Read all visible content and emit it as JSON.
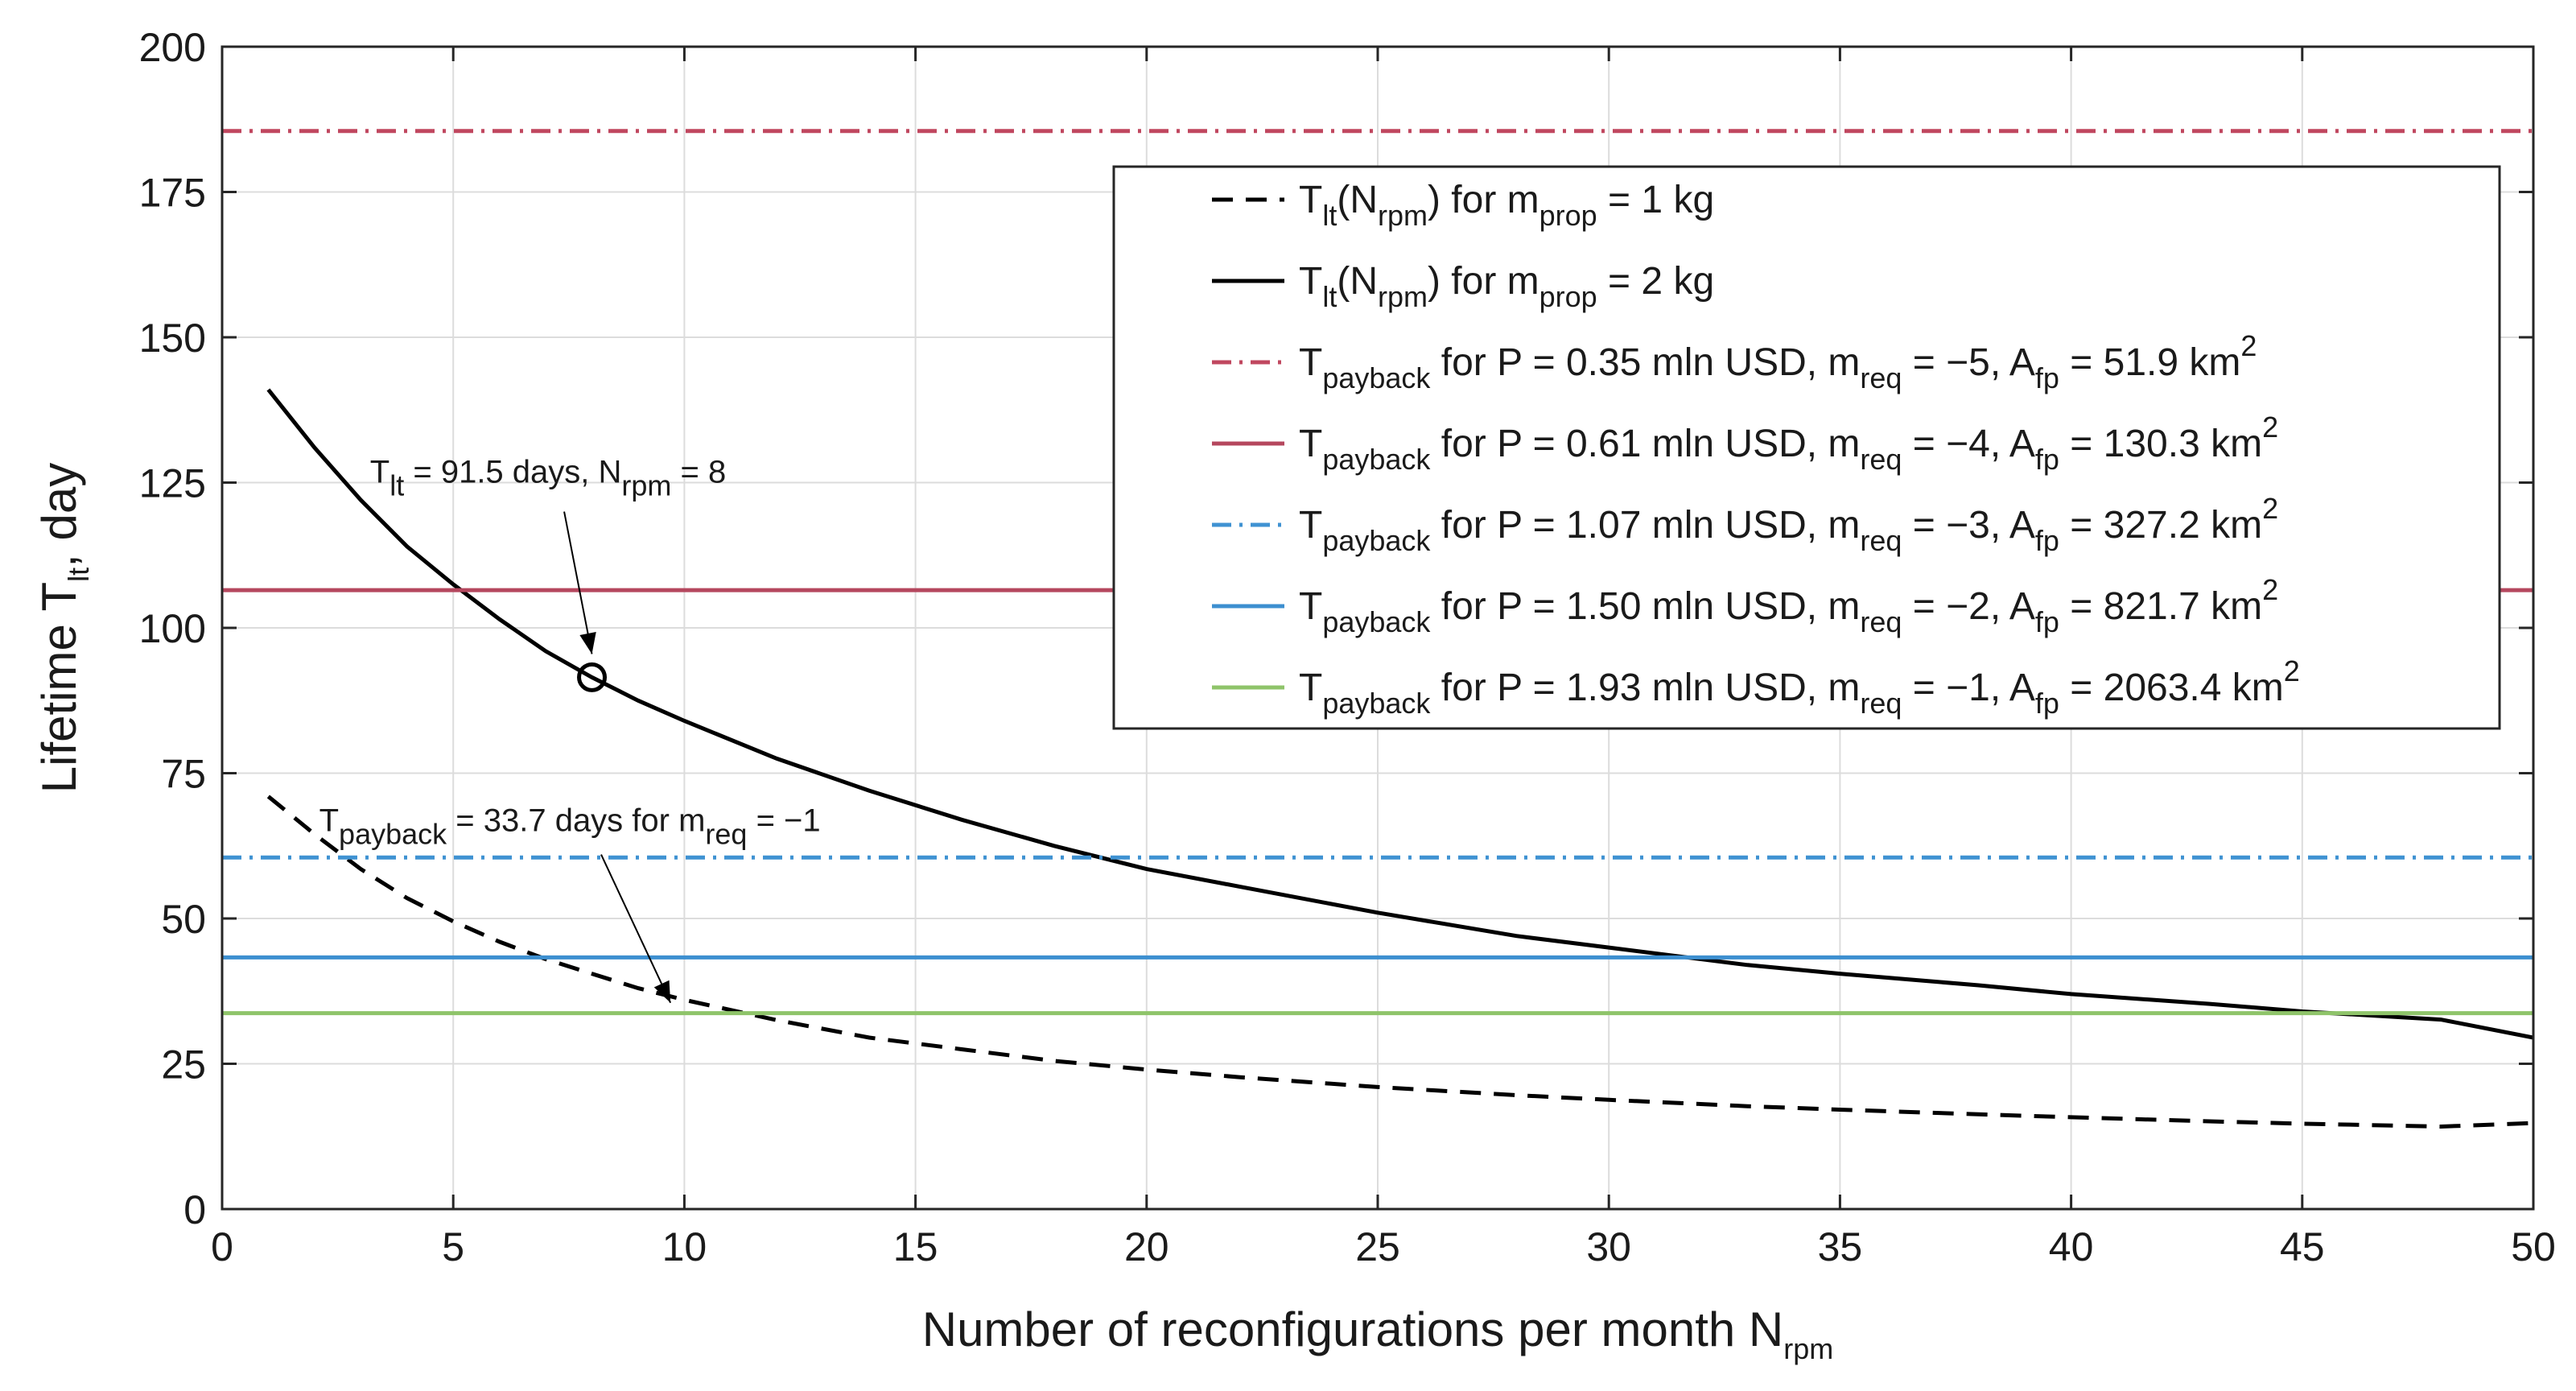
{
  "chart_data": {
    "type": "line",
    "xlim": [
      0,
      50
    ],
    "ylim": [
      0,
      200
    ],
    "x_ticks": [
      0,
      5,
      10,
      15,
      20,
      25,
      30,
      35,
      40,
      45,
      50
    ],
    "y_ticks": [
      0,
      25,
      50,
      75,
      100,
      125,
      150,
      175,
      200
    ],
    "grid": true,
    "legend_placement": "top-right",
    "xlabel": {
      "main": "Number of reconfigurations per month N",
      "sub": "rpm"
    },
    "ylabel": {
      "main": "Lifetime T",
      "sub": "lt",
      "suffix": ", day"
    },
    "series": [
      {
        "style": "dashed",
        "color": "#000000",
        "legend": [
          {
            "t": "T"
          },
          {
            "t": "lt",
            "s": "sub"
          },
          {
            "t": "(N"
          },
          {
            "t": "rpm",
            "s": "sub"
          },
          {
            "t": ") for m"
          },
          {
            "t": "prop",
            "s": "sub"
          },
          {
            "t": " = 1 kg"
          }
        ],
        "x": [
          1,
          2,
          3,
          4,
          5,
          6,
          7,
          8,
          9,
          10,
          12,
          14,
          16,
          18,
          20,
          22,
          25,
          28,
          30,
          33,
          35,
          38,
          40,
          43,
          45,
          48,
          50
        ],
        "y": [
          71,
          64.5,
          58.5,
          53.5,
          49.5,
          46,
          43,
          40.5,
          38,
          36,
          32.5,
          29.5,
          27.5,
          25.5,
          24,
          22.7,
          21,
          19.6,
          18.8,
          17.7,
          17.1,
          16.3,
          15.8,
          15.1,
          14.7,
          14.2,
          14.8
        ]
      },
      {
        "style": "solid",
        "color": "#000000",
        "legend": [
          {
            "t": "T"
          },
          {
            "t": "lt",
            "s": "sub"
          },
          {
            "t": "(N"
          },
          {
            "t": "rpm",
            "s": "sub"
          },
          {
            "t": ") for m"
          },
          {
            "t": "prop",
            "s": "sub"
          },
          {
            "t": " = 2 kg"
          }
        ],
        "x": [
          1,
          2,
          3,
          4,
          5,
          6,
          7,
          8,
          9,
          10,
          12,
          14,
          16,
          18,
          20,
          22,
          25,
          28,
          30,
          33,
          35,
          38,
          40,
          43,
          45,
          48,
          50
        ],
        "y": [
          141,
          131,
          122,
          114,
          107.5,
          101.5,
          96,
          91.5,
          87.5,
          84,
          77.5,
          72,
          67,
          62.5,
          58.5,
          55.5,
          51,
          47,
          45,
          42,
          40.5,
          38.5,
          37,
          35.3,
          34,
          32.6,
          29.5
        ]
      },
      {
        "style": "dashdot",
        "color": "#c0475f",
        "y_const": 185.5,
        "legend": [
          {
            "t": "T"
          },
          {
            "t": "payback",
            "s": "sub"
          },
          {
            "t": " for P = 0.35 mln USD, m"
          },
          {
            "t": "req",
            "s": "sub"
          },
          {
            "t": " = −5, A"
          },
          {
            "t": "fp",
            "s": "sub"
          },
          {
            "t": " = 51.9 km"
          },
          {
            "t": "2",
            "s": "sup"
          }
        ]
      },
      {
        "style": "solid",
        "color": "#b5475e",
        "y_const": 106.5,
        "legend": [
          {
            "t": "T"
          },
          {
            "t": "payback",
            "s": "sub"
          },
          {
            "t": " for P = 0.61 mln USD, m"
          },
          {
            "t": "req",
            "s": "sub"
          },
          {
            "t": " = −4, A"
          },
          {
            "t": "fp",
            "s": "sub"
          },
          {
            "t": " = 130.3 km"
          },
          {
            "t": "2",
            "s": "sup"
          }
        ]
      },
      {
        "style": "dashdot",
        "color": "#3f92d2",
        "y_const": 60.5,
        "legend": [
          {
            "t": "T"
          },
          {
            "t": "payback",
            "s": "sub"
          },
          {
            "t": " for P = 1.07 mln USD, m"
          },
          {
            "t": "req",
            "s": "sub"
          },
          {
            "t": " = −3, A"
          },
          {
            "t": "fp",
            "s": "sub"
          },
          {
            "t": " = 327.2 km"
          },
          {
            "t": "2",
            "s": "sup"
          }
        ]
      },
      {
        "style": "solid",
        "color": "#3d8fd0",
        "y_const": 43.3,
        "legend": [
          {
            "t": "T"
          },
          {
            "t": "payback",
            "s": "sub"
          },
          {
            "t": " for P = 1.50 mln USD, m"
          },
          {
            "t": "req",
            "s": "sub"
          },
          {
            "t": " = −2, A"
          },
          {
            "t": "fp",
            "s": "sub"
          },
          {
            "t": " = 821.7 km"
          },
          {
            "t": "2",
            "s": "sup"
          }
        ]
      },
      {
        "style": "solid",
        "color": "#8fc46a",
        "y_const": 33.7,
        "legend": [
          {
            "t": "T"
          },
          {
            "t": "payback",
            "s": "sub"
          },
          {
            "t": " for P = 1.93 mln USD, m"
          },
          {
            "t": "req",
            "s": "sub"
          },
          {
            "t": " = −1, A"
          },
          {
            "t": "fp",
            "s": "sub"
          },
          {
            "t": " = 2063.4 km"
          },
          {
            "t": "2",
            "s": "sup"
          }
        ]
      }
    ],
    "marker": {
      "x": 8,
      "y": 91.5
    },
    "annotations": [
      {
        "segments": [
          {
            "t": "T"
          },
          {
            "t": "lt",
            "s": "sub"
          },
          {
            "t": " = 91.5 days, N"
          },
          {
            "t": "rpm",
            "s": "sub"
          },
          {
            "t": " = 8"
          }
        ],
        "text_x": 3.2,
        "text_y": 125,
        "arrow_from": [
          7.4,
          120
        ],
        "arrow_to": [
          8,
          95.5
        ]
      },
      {
        "segments": [
          {
            "t": "T"
          },
          {
            "t": "payback",
            "s": "sub"
          },
          {
            "t": " = 33.7 days for m"
          },
          {
            "t": "req",
            "s": "sub"
          },
          {
            "t": " = −1"
          }
        ],
        "text_x": 2.1,
        "text_y": 65,
        "arrow_from": [
          8.2,
          61
        ],
        "arrow_to": [
          9.7,
          35.5
        ]
      }
    ]
  }
}
